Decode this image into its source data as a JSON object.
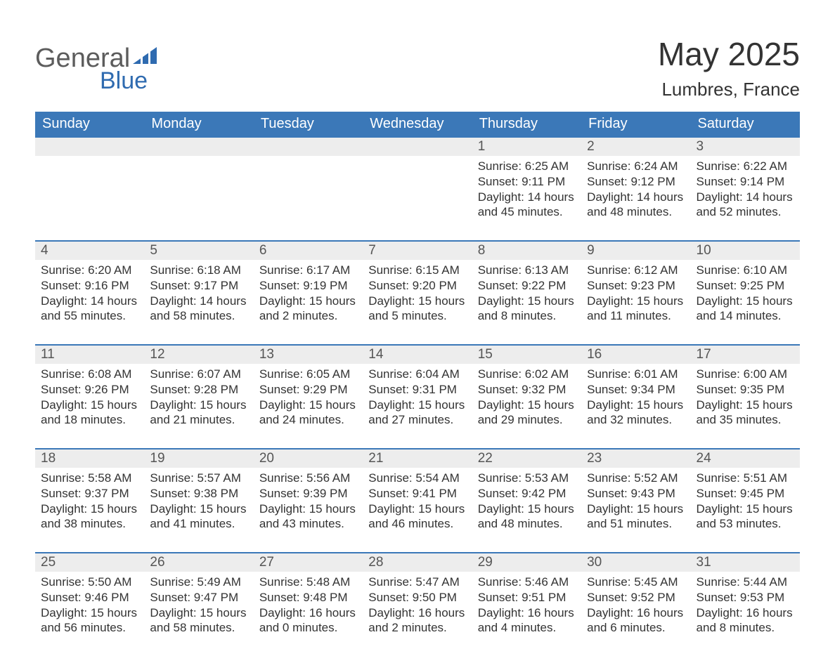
{
  "logo": {
    "word1": "General",
    "word2": "Blue",
    "icon_color": "#2f6bb0"
  },
  "title": "May 2025",
  "location": "Lumbres, France",
  "colors": {
    "header_bg": "#3b78b8",
    "header_text": "#ffffff",
    "daynum_bg": "#ededed",
    "daynum_border": "#3b78b8",
    "daynum_text": "#555555",
    "body_text": "#333333",
    "page_bg": "#ffffff",
    "logo_grey": "#5c5c5c",
    "logo_blue": "#2f6bb0"
  },
  "typography": {
    "title_fontsize": 46,
    "location_fontsize": 26,
    "header_fontsize": 20,
    "daynum_fontsize": 19,
    "body_fontsize": 17,
    "font_family": "Arial"
  },
  "columns": [
    "Sunday",
    "Monday",
    "Tuesday",
    "Wednesday",
    "Thursday",
    "Friday",
    "Saturday"
  ],
  "weeks": [
    [
      null,
      null,
      null,
      null,
      {
        "n": "1",
        "sunrise": "6:25 AM",
        "sunset": "9:11 PM",
        "daylight": "14 hours and 45 minutes."
      },
      {
        "n": "2",
        "sunrise": "6:24 AM",
        "sunset": "9:12 PM",
        "daylight": "14 hours and 48 minutes."
      },
      {
        "n": "3",
        "sunrise": "6:22 AM",
        "sunset": "9:14 PM",
        "daylight": "14 hours and 52 minutes."
      }
    ],
    [
      {
        "n": "4",
        "sunrise": "6:20 AM",
        "sunset": "9:16 PM",
        "daylight": "14 hours and 55 minutes."
      },
      {
        "n": "5",
        "sunrise": "6:18 AM",
        "sunset": "9:17 PM",
        "daylight": "14 hours and 58 minutes."
      },
      {
        "n": "6",
        "sunrise": "6:17 AM",
        "sunset": "9:19 PM",
        "daylight": "15 hours and 2 minutes."
      },
      {
        "n": "7",
        "sunrise": "6:15 AM",
        "sunset": "9:20 PM",
        "daylight": "15 hours and 5 minutes."
      },
      {
        "n": "8",
        "sunrise": "6:13 AM",
        "sunset": "9:22 PM",
        "daylight": "15 hours and 8 minutes."
      },
      {
        "n": "9",
        "sunrise": "6:12 AM",
        "sunset": "9:23 PM",
        "daylight": "15 hours and 11 minutes."
      },
      {
        "n": "10",
        "sunrise": "6:10 AM",
        "sunset": "9:25 PM",
        "daylight": "15 hours and 14 minutes."
      }
    ],
    [
      {
        "n": "11",
        "sunrise": "6:08 AM",
        "sunset": "9:26 PM",
        "daylight": "15 hours and 18 minutes."
      },
      {
        "n": "12",
        "sunrise": "6:07 AM",
        "sunset": "9:28 PM",
        "daylight": "15 hours and 21 minutes."
      },
      {
        "n": "13",
        "sunrise": "6:05 AM",
        "sunset": "9:29 PM",
        "daylight": "15 hours and 24 minutes."
      },
      {
        "n": "14",
        "sunrise": "6:04 AM",
        "sunset": "9:31 PM",
        "daylight": "15 hours and 27 minutes."
      },
      {
        "n": "15",
        "sunrise": "6:02 AM",
        "sunset": "9:32 PM",
        "daylight": "15 hours and 29 minutes."
      },
      {
        "n": "16",
        "sunrise": "6:01 AM",
        "sunset": "9:34 PM",
        "daylight": "15 hours and 32 minutes."
      },
      {
        "n": "17",
        "sunrise": "6:00 AM",
        "sunset": "9:35 PM",
        "daylight": "15 hours and 35 minutes."
      }
    ],
    [
      {
        "n": "18",
        "sunrise": "5:58 AM",
        "sunset": "9:37 PM",
        "daylight": "15 hours and 38 minutes."
      },
      {
        "n": "19",
        "sunrise": "5:57 AM",
        "sunset": "9:38 PM",
        "daylight": "15 hours and 41 minutes."
      },
      {
        "n": "20",
        "sunrise": "5:56 AM",
        "sunset": "9:39 PM",
        "daylight": "15 hours and 43 minutes."
      },
      {
        "n": "21",
        "sunrise": "5:54 AM",
        "sunset": "9:41 PM",
        "daylight": "15 hours and 46 minutes."
      },
      {
        "n": "22",
        "sunrise": "5:53 AM",
        "sunset": "9:42 PM",
        "daylight": "15 hours and 48 minutes."
      },
      {
        "n": "23",
        "sunrise": "5:52 AM",
        "sunset": "9:43 PM",
        "daylight": "15 hours and 51 minutes."
      },
      {
        "n": "24",
        "sunrise": "5:51 AM",
        "sunset": "9:45 PM",
        "daylight": "15 hours and 53 minutes."
      }
    ],
    [
      {
        "n": "25",
        "sunrise": "5:50 AM",
        "sunset": "9:46 PM",
        "daylight": "15 hours and 56 minutes."
      },
      {
        "n": "26",
        "sunrise": "5:49 AM",
        "sunset": "9:47 PM",
        "daylight": "15 hours and 58 minutes."
      },
      {
        "n": "27",
        "sunrise": "5:48 AM",
        "sunset": "9:48 PM",
        "daylight": "16 hours and 0 minutes."
      },
      {
        "n": "28",
        "sunrise": "5:47 AM",
        "sunset": "9:50 PM",
        "daylight": "16 hours and 2 minutes."
      },
      {
        "n": "29",
        "sunrise": "5:46 AM",
        "sunset": "9:51 PM",
        "daylight": "16 hours and 4 minutes."
      },
      {
        "n": "30",
        "sunrise": "5:45 AM",
        "sunset": "9:52 PM",
        "daylight": "16 hours and 6 minutes."
      },
      {
        "n": "31",
        "sunrise": "5:44 AM",
        "sunset": "9:53 PM",
        "daylight": "16 hours and 8 minutes."
      }
    ]
  ],
  "labels": {
    "sunrise": "Sunrise: ",
    "sunset": "Sunset: ",
    "daylight": "Daylight: "
  }
}
